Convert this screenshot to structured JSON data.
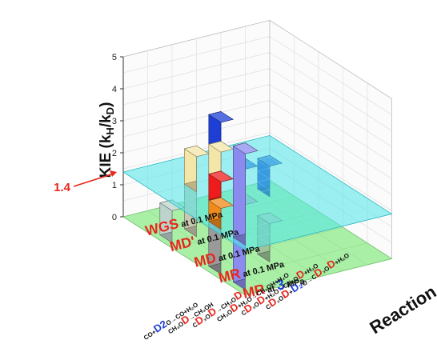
{
  "chart_data": {
    "type": "bar3d",
    "zlabel": {
      "main": "KIE (k",
      "sub_h": "H",
      "mid": "/k",
      "sub_d": "D",
      "end": ")"
    },
    "xlabel": "Reaction",
    "zlim": [
      0,
      5
    ],
    "z_ticks": [
      "0",
      "1",
      "2",
      "3",
      "4",
      "5"
    ],
    "reference_plane": {
      "value": 1.4,
      "label": "1.4"
    },
    "reactions": [
      {
        "parts": [
          [
            "MR",
            "red"
          ],
          [
            " at ",
            "dark"
          ],
          [
            "3",
            "blue"
          ],
          [
            " MPa",
            "dark"
          ]
        ]
      },
      {
        "parts": [
          [
            "MR",
            "red"
          ],
          [
            " at 0.1 MPa",
            "dark"
          ]
        ]
      },
      {
        "parts": [
          [
            "MD",
            "red"
          ],
          [
            " at 0.1 MPa",
            "dark"
          ]
        ]
      },
      {
        "parts": [
          [
            "MD'",
            "red"
          ],
          [
            " at 0.1 MPa",
            "dark"
          ]
        ]
      },
      {
        "parts": [
          [
            "WGS",
            "red"
          ],
          [
            " at 0.1 MPa",
            "dark"
          ]
        ]
      }
    ],
    "steps": [
      {
        "parts": [
          [
            "CO+",
            "dark"
          ],
          [
            "D",
            "blue"
          ],
          [
            "2",
            "blue"
          ],
          [
            "O→CO+H₂O",
            "dark"
          ]
        ]
      },
      {
        "parts": [
          [
            "CH₃O",
            "dark"
          ],
          [
            "D",
            "red"
          ],
          [
            "→CH₃OH",
            "dark"
          ]
        ]
      },
      {
        "parts": [
          [
            "C",
            "dark"
          ],
          [
            "D",
            "red"
          ],
          [
            "₃O",
            "dark"
          ],
          [
            "D",
            "red"
          ],
          [
            "→CH₃O",
            "dark"
          ],
          [
            "D",
            "red"
          ]
        ]
      },
      {
        "parts": [
          [
            "CH₃O",
            "dark"
          ],
          [
            "D",
            "red"
          ],
          [
            "+H₂O→CH₃OH+H₂O",
            "dark"
          ]
        ]
      },
      {
        "parts": [
          [
            "C",
            "dark"
          ],
          [
            "D",
            "red"
          ],
          [
            "₃O",
            "dark"
          ],
          [
            "D",
            "red"
          ],
          [
            "+H₂O→CH₃O",
            "dark"
          ],
          [
            "D",
            "red"
          ],
          [
            "+H₂O",
            "dark"
          ]
        ]
      },
      {
        "parts": [
          [
            "C",
            "dark"
          ],
          [
            "D",
            "red"
          ],
          [
            "₃O",
            "dark"
          ],
          [
            "D",
            "red"
          ],
          [
            "+",
            "dark"
          ],
          [
            "D",
            "blue"
          ],
          [
            "₂",
            "blue"
          ],
          [
            "O→C",
            "dark"
          ],
          [
            "D",
            "red"
          ],
          [
            "₃O",
            "dark"
          ],
          [
            "D",
            "red"
          ],
          [
            "+H₂O",
            "dark"
          ]
        ]
      }
    ],
    "bars": [
      {
        "reaction": 0,
        "step": 3,
        "value": 2.7,
        "color": "#1e3fd6",
        "lower_color": "#1e3fd6"
      },
      {
        "reaction": 0,
        "step": 4,
        "value": 1.05,
        "color": "#1e3fd6",
        "lower_color": "#1e3fd6"
      },
      {
        "reaction": 0,
        "step": 5,
        "value": 0.95,
        "color": "#1e3fd6",
        "lower_color": "#1e3fd6"
      },
      {
        "reaction": 1,
        "step": 2,
        "value": 2.45,
        "color": "#f3e6a8",
        "lower_color": "#c9c9b0"
      },
      {
        "reaction": 1,
        "step": 1,
        "value": 2.5,
        "color": "#f3e6a8",
        "lower_color": "#c9c9b0"
      },
      {
        "reaction": 1,
        "step": 0,
        "value": 1.0,
        "color": "#c5dcd3",
        "lower_color": "#bcd4cb"
      },
      {
        "reaction": 2,
        "step": 1,
        "value": 2.2,
        "color": "#ee1c1c",
        "lower_color": "#9a9a9a"
      },
      {
        "reaction": 2,
        "step": 2,
        "value": 1.3,
        "color": "#ee1c1c",
        "lower_color": "#9a9a9a"
      },
      {
        "reaction": 3,
        "step": 0,
        "value": 2.05,
        "color": "#f08a1a",
        "lower_color": "#9a9a9a"
      },
      {
        "reaction": 3,
        "step": 2,
        "value": 1.2,
        "color": "#9fc49a",
        "lower_color": "#9fc49a"
      },
      {
        "reaction": 4,
        "step": 0,
        "value": 4.25,
        "color": "#8b8bef",
        "lower_color": "#8b8bef"
      }
    ],
    "colors": {
      "red": "#e8271f",
      "blue": "#1e3fd6",
      "dark": "#111111",
      "arrow": "#e8271f",
      "plane": "#4fe6ea",
      "floor": "#a9f0a6"
    }
  }
}
